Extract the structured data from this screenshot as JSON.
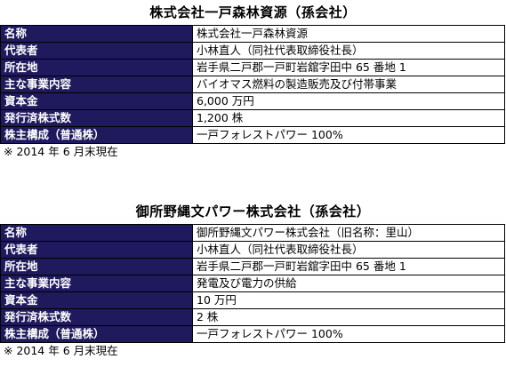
{
  "companies": [
    {
      "title": "株式会社一戸森林資源（孫会社）",
      "rows": [
        {
          "label": "名称",
          "value": "株式会社一戸森林資源"
        },
        {
          "label": "代表者",
          "value": "小林直人（同社代表取締役社長）"
        },
        {
          "label": "所在地",
          "value": "岩手県二戸郡一戸町岩舘字田中 65 番地 1"
        },
        {
          "label": "主な事業内容",
          "value": "バイオマス燃料の製造販売及び付帯事業"
        },
        {
          "label": "資本金",
          "value": "6,000 万円"
        },
        {
          "label": "発行済株式数",
          "value": "1,200 株"
        },
        {
          "label": "株主構成（普通株）",
          "value": "一戸フォレストパワー 100%"
        }
      ],
      "note": "※ 2014 年 6 月末現在"
    },
    {
      "title": "御所野縄文パワー株式会社（孫会社）",
      "rows": [
        {
          "label": "名称",
          "value": "御所野縄文パワー株式会社（旧名称：里山）"
        },
        {
          "label": "代表者",
          "value": "小林直人（同社代表取締役社長）"
        },
        {
          "label": "所在地",
          "value": "岩手県二戸郡一戸町岩舘字田中 65 番地 1"
        },
        {
          "label": "主な事業内容",
          "value": "発電及び電力の供給"
        },
        {
          "label": "資本金",
          "value": "10 万円"
        },
        {
          "label": "発行済株式数",
          "value": "2 株"
        },
        {
          "label": "株主構成（普通株）",
          "value": "一戸フォレストパワー 100%"
        }
      ],
      "note": "※ 2014 年 6 月末現在"
    }
  ],
  "colors": {
    "header_bg": "#1f1a5e",
    "header_text": "#ffffff"
  }
}
